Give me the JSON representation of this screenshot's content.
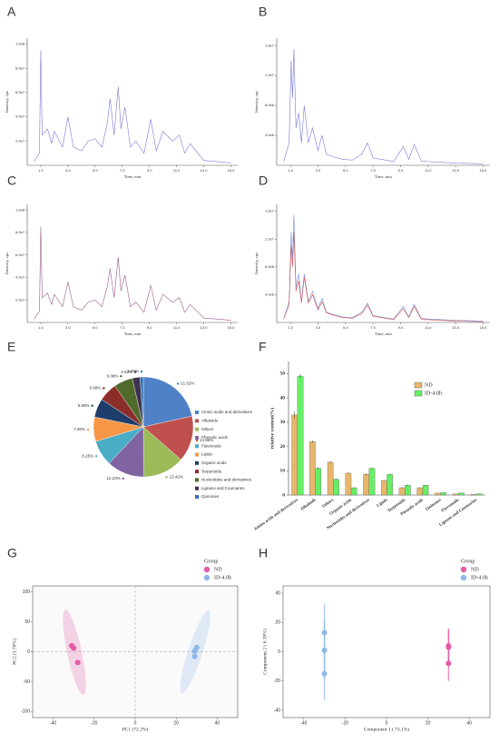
{
  "chart_data": [
    {
      "panel": "A",
      "type": "line",
      "x_label": "Time, min",
      "y_label": "Intensity, cps",
      "x": [
        0.5,
        0.9,
        1.0,
        1.1,
        1.5,
        1.8,
        2.0,
        2.6,
        3.0,
        3.4,
        4.0,
        4.5,
        5.0,
        5.5,
        5.9,
        6.1,
        6.4,
        6.7,
        6.9,
        7.2,
        7.6,
        8.0,
        8.6,
        9.1,
        9.5,
        10.0,
        10.7,
        11.2,
        11.6,
        12.0,
        13.0,
        15.0
      ],
      "series": [
        {
          "color": "#7a7ad9",
          "values": [
            3000000.0,
            10000000.0,
            95000000.0,
            25000000.0,
            30000000.0,
            18000000.0,
            28000000.0,
            15000000.0,
            40000000.0,
            15000000.0,
            12000000.0,
            20000000.0,
            22000000.0,
            15000000.0,
            35000000.0,
            55000000.0,
            25000000.0,
            65000000.0,
            30000000.0,
            48000000.0,
            15000000.0,
            20000000.0,
            10000000.0,
            38000000.0,
            12000000.0,
            28000000.0,
            20000000.0,
            25000000.0,
            10000000.0,
            18000000.0,
            4000000.0,
            2000000.0
          ]
        }
      ],
      "xlim": [
        0,
        15.5
      ],
      "xticks": [
        {
          "value": 1,
          "label": "1.0"
        },
        {
          "value": 3,
          "label": "3.0"
        },
        {
          "value": 5,
          "label": "5.0"
        },
        {
          "value": 7,
          "label": "7.0"
        },
        {
          "value": 9,
          "label": "9.0"
        },
        {
          "value": 11,
          "label": "11.0"
        },
        {
          "value": 13,
          "label": "13.0"
        },
        {
          "value": 15,
          "label": "15.0"
        }
      ],
      "ylim": [
        0,
        105000000.0
      ],
      "yticks": [
        {
          "value": 20000000.0,
          "label": "2.0e7"
        },
        {
          "value": 40000000.0,
          "label": "4.0e7"
        },
        {
          "value": 60000000.0,
          "label": "6.0e7"
        },
        {
          "value": 80000000.0,
          "label": "8.0e7"
        },
        {
          "value": 100000000.0,
          "label": "1.0e8"
        }
      ]
    },
    {
      "panel": "B",
      "type": "line",
      "x_label": "Time, min",
      "y_label": "Intensity, cps",
      "x": [
        0.5,
        0.9,
        1.05,
        1.15,
        1.25,
        1.4,
        1.6,
        1.8,
        2.0,
        2.3,
        2.6,
        3.0,
        3.3,
        3.6,
        4.0,
        4.4,
        4.8,
        5.5,
        6.2,
        6.6,
        7.0,
        7.6,
        8.5,
        9.2,
        9.6,
        10.0,
        10.5,
        11.0,
        12.0,
        13.0,
        15.0
      ],
      "series": [
        {
          "color": "#7a7ad9",
          "values": [
            500000.0,
            3000000.0,
            14000000.0,
            9000000.0,
            15500000.0,
            5000000.0,
            7000000.0,
            3000000.0,
            8000000.0,
            3000000.0,
            5000000.0,
            2000000.0,
            4000000.0,
            1500000.0,
            1200000.0,
            1000000.0,
            800000.0,
            700000.0,
            1500000.0,
            3000000.0,
            1000000.0,
            800000.0,
            500000.0,
            2500000.0,
            800000.0,
            2800000.0,
            600000.0,
            500000.0,
            400000.0,
            300000.0,
            200000.0
          ]
        }
      ],
      "xlim": [
        0,
        15.5
      ],
      "xticks": [
        {
          "value": 1,
          "label": "1.0"
        },
        {
          "value": 3,
          "label": "3.0"
        },
        {
          "value": 5,
          "label": "5.0"
        },
        {
          "value": 7,
          "label": "7.0"
        },
        {
          "value": 9,
          "label": "9.0"
        },
        {
          "value": 11,
          "label": "11.0"
        },
        {
          "value": 13,
          "label": "13.0"
        },
        {
          "value": 15,
          "label": "15.0"
        }
      ],
      "ylim": [
        0,
        17000000.0
      ],
      "yticks": [
        {
          "value": 4000000.0,
          "label": "4.0e6"
        },
        {
          "value": 8000000.0,
          "label": "8.0e6"
        },
        {
          "value": 12000000.0,
          "label": "1.2e7"
        },
        {
          "value": 16000000.0,
          "label": "1.6e7"
        }
      ]
    },
    {
      "panel": "C",
      "type": "line",
      "x_label": "Time, min",
      "y_label": "Intensity, cps",
      "x": [
        0.5,
        0.9,
        1.0,
        1.1,
        1.5,
        1.8,
        2.0,
        2.6,
        3.0,
        3.4,
        4.0,
        4.5,
        5.0,
        5.5,
        5.9,
        6.1,
        6.4,
        6.7,
        6.9,
        7.2,
        7.6,
        8.0,
        8.6,
        9.1,
        9.5,
        10.0,
        10.7,
        11.2,
        11.6,
        12.0,
        13.0,
        15.0
      ],
      "series": [
        {
          "color": "#9a5a8e",
          "values": [
            3000000.0,
            10000000.0,
            85000000.0,
            22000000.0,
            26000000.0,
            16000000.0,
            25000000.0,
            14000000.0,
            36000000.0,
            14000000.0,
            11000000.0,
            18000000.0,
            20000000.0,
            14000000.0,
            32000000.0,
            48000000.0,
            22000000.0,
            58000000.0,
            28000000.0,
            42000000.0,
            14000000.0,
            18000000.0,
            9000000.0,
            33000000.0,
            11000000.0,
            25000000.0,
            18000000.0,
            22000000.0,
            9000000.0,
            16000000.0,
            4000000.0,
            2000000.0
          ]
        }
      ],
      "xlim": [
        0,
        15.5
      ],
      "xticks": [
        {
          "value": 1,
          "label": "1.0"
        },
        {
          "value": 3,
          "label": "3.0"
        },
        {
          "value": 5,
          "label": "5.0"
        },
        {
          "value": 7,
          "label": "7.0"
        },
        {
          "value": 9,
          "label": "9.0"
        },
        {
          "value": 11,
          "label": "11.0"
        },
        {
          "value": 13,
          "label": "13.0"
        },
        {
          "value": 15,
          "label": "15.0"
        }
      ],
      "ylim": [
        0,
        105000000.0
      ],
      "yticks": [
        {
          "value": 20000000.0,
          "label": "2.0e7"
        },
        {
          "value": 40000000.0,
          "label": "4.0e7"
        },
        {
          "value": 60000000.0,
          "label": "6.0e7"
        },
        {
          "value": 80000000.0,
          "label": "8.0e7"
        },
        {
          "value": 100000000.0,
          "label": "1.0e8"
        }
      ]
    },
    {
      "panel": "D",
      "type": "line",
      "x_label": "Time, min",
      "y_label": "Intensity, cps",
      "x": [
        0.5,
        0.9,
        1.05,
        1.15,
        1.25,
        1.4,
        1.6,
        1.8,
        2.0,
        2.3,
        2.6,
        3.0,
        3.3,
        3.6,
        4.0,
        4.4,
        4.8,
        5.5,
        6.2,
        6.6,
        7.0,
        7.6,
        8.5,
        9.2,
        9.6,
        10.0,
        10.5,
        11.0,
        12.0,
        13.0,
        15.0
      ],
      "series": [
        {
          "color": "#6f8fd8",
          "values": [
            500000.0,
            3000000.0,
            13000000.0,
            9000000.0,
            15500000.0,
            5000000.0,
            7000000.0,
            3000000.0,
            7000000.0,
            3000000.0,
            4500000.0,
            2000000.0,
            3500000.0,
            1500000.0,
            1200000.0,
            1000000.0,
            800000.0,
            700000.0,
            1500000.0,
            2800000.0,
            1000000.0,
            800000.0,
            500000.0,
            2300000.0,
            800000.0,
            2600000.0,
            600000.0,
            500000.0,
            400000.0,
            300000.0,
            200000.0
          ]
        },
        {
          "color": "#d9534f",
          "values": [
            500000.0,
            2500000.0,
            11000000.0,
            8000000.0,
            13000000.0,
            4500000.0,
            6000000.0,
            2800000.0,
            6500000.0,
            2800000.0,
            4000000.0,
            1800000.0,
            3000000.0,
            1400000.0,
            1100000.0,
            900000.0,
            700000.0,
            600000.0,
            1300000.0,
            2500000.0,
            900000.0,
            700000.0,
            400000.0,
            2000000.0,
            700000.0,
            2300000.0,
            500000.0,
            400000.0,
            300000.0,
            200000.0,
            100000.0
          ]
        }
      ],
      "xlim": [
        0,
        15.5
      ],
      "xticks": [
        {
          "value": 1,
          "label": "1.0"
        },
        {
          "value": 3,
          "label": "3.0"
        },
        {
          "value": 5,
          "label": "5.0"
        },
        {
          "value": 7,
          "label": "7.0"
        },
        {
          "value": 9,
          "label": "9.0"
        },
        {
          "value": 11,
          "label": "11.0"
        },
        {
          "value": 13,
          "label": "13.0"
        },
        {
          "value": 15,
          "label": "15.0"
        }
      ],
      "ylim": [
        0,
        17000000.0
      ],
      "yticks": [
        {
          "value": 4000000.0,
          "label": "4.0e6"
        },
        {
          "value": 8000000.0,
          "label": "8.0e6"
        },
        {
          "value": 12000000.0,
          "label": "1.2e7"
        },
        {
          "value": 16000000.0,
          "label": "1.6e7"
        }
      ]
    },
    {
      "panel": "E",
      "type": "pie",
      "categories": [
        "Amino acids and derivatives",
        "Alkaloids",
        "Others",
        "Phenolic acids",
        "Flavonoids",
        "Lipids",
        "Organic acids",
        "Terpenoids",
        "Nucleotides and derivatives",
        "Lignans and Coumarins",
        "Quinones"
      ],
      "values": [
        21.52,
        14.88,
        13.42,
        12.23,
        8.25,
        7.9,
        6.08,
        6.08,
        6.08,
        2.52,
        1.05
      ],
      "value_labels": [
        "21.52%",
        "14.88%",
        "13.42%",
        "12.23%",
        "8.25%",
        "7.90%",
        "6.08%",
        "6.08%",
        "6.08%",
        "2.52%",
        "1.05%"
      ],
      "colors": [
        "#4f81c7",
        "#c0504d",
        "#9bbb59",
        "#8064a2",
        "#4bacc6",
        "#f79646",
        "#1f3d6b",
        "#8b2e2a",
        "#4f6a2b",
        "#3f3151",
        "#2e74b5"
      ]
    },
    {
      "panel": "F",
      "type": "bar",
      "y_label": "relative content(%)",
      "categories": [
        "Amino acids and derivatives",
        "Alkaloids",
        "Others",
        "Organic acids",
        "Nucleotides and derivatives",
        "Lipids",
        "Terpenoids",
        "Phenolic acids",
        "Quinones",
        "Flavonoids",
        "Lignans and Coumarins"
      ],
      "series": [
        {
          "name": "ND",
          "color": "#e6b76b",
          "values": [
            33,
            22,
            13.5,
            9,
            8.5,
            6,
            3,
            3,
            0.8,
            0.5,
            0.3
          ],
          "errors": [
            1.5,
            0.5,
            0.4,
            0.3,
            0.4,
            0.2,
            0.3,
            0.2,
            0.1,
            0.1,
            0.1
          ]
        },
        {
          "name": "ID-4.0h",
          "color": "#66ee66",
          "values": [
            49,
            11,
            6.5,
            3,
            11,
            8.5,
            4,
            4,
            1,
            0.8,
            0.5
          ],
          "errors": [
            0.8,
            0.5,
            0.3,
            0.2,
            0.3,
            0.2,
            0.3,
            0.2,
            0.1,
            0.1,
            0.1
          ]
        }
      ],
      "ylim": [
        0,
        55
      ],
      "yticks": [
        0,
        10,
        20,
        30,
        40,
        50
      ]
    },
    {
      "panel": "G",
      "type": "scatter",
      "x_label": "PC1 (72.2%)",
      "y_label": "PC2 (3.78%)",
      "legend_title": "Group",
      "reference_lines": true,
      "ellipses": true,
      "series": [
        {
          "name": "ND",
          "color": "#e25ca8",
          "x": [
            -31,
            -30,
            -28
          ],
          "values": [
            10,
            6,
            -18
          ]
        },
        {
          "name": "ID-4.0h",
          "color": "#8fb8e8",
          "x": [
            30,
            29,
            29
          ],
          "values": [
            7,
            1,
            -8
          ]
        }
      ],
      "xlim": [
        -50,
        50
      ],
      "xticks": [
        -40,
        -20,
        0,
        20,
        40
      ],
      "ylim": [
        -110,
        110
      ],
      "yticks": [
        -100,
        -50,
        0,
        50,
        100
      ]
    },
    {
      "panel": "H",
      "type": "scatter",
      "x_label": "Component 1 ( 73.1%)",
      "y_label": "Component 2 ( 6.39%)",
      "legend_title": "Group",
      "reference_lines": false,
      "ellipses": false,
      "series": [
        {
          "name": "ND",
          "color": "#e25ca8",
          "x": [
            30,
            30,
            30
          ],
          "values": [
            4,
            3,
            -8
          ],
          "errors": [
            12,
            12,
            12
          ]
        },
        {
          "name": "ID-4.0h",
          "color": "#8fb8e8",
          "x": [
            -30,
            -30,
            -30
          ],
          "values": [
            13,
            1,
            -15
          ],
          "errors": [
            20,
            20,
            18
          ]
        }
      ],
      "xlim": [
        -50,
        50
      ],
      "xticks": [
        -40,
        -20,
        0,
        20,
        40
      ],
      "ylim": [
        -45,
        45
      ],
      "yticks": [
        -40,
        -20,
        0,
        20,
        40
      ]
    }
  ]
}
